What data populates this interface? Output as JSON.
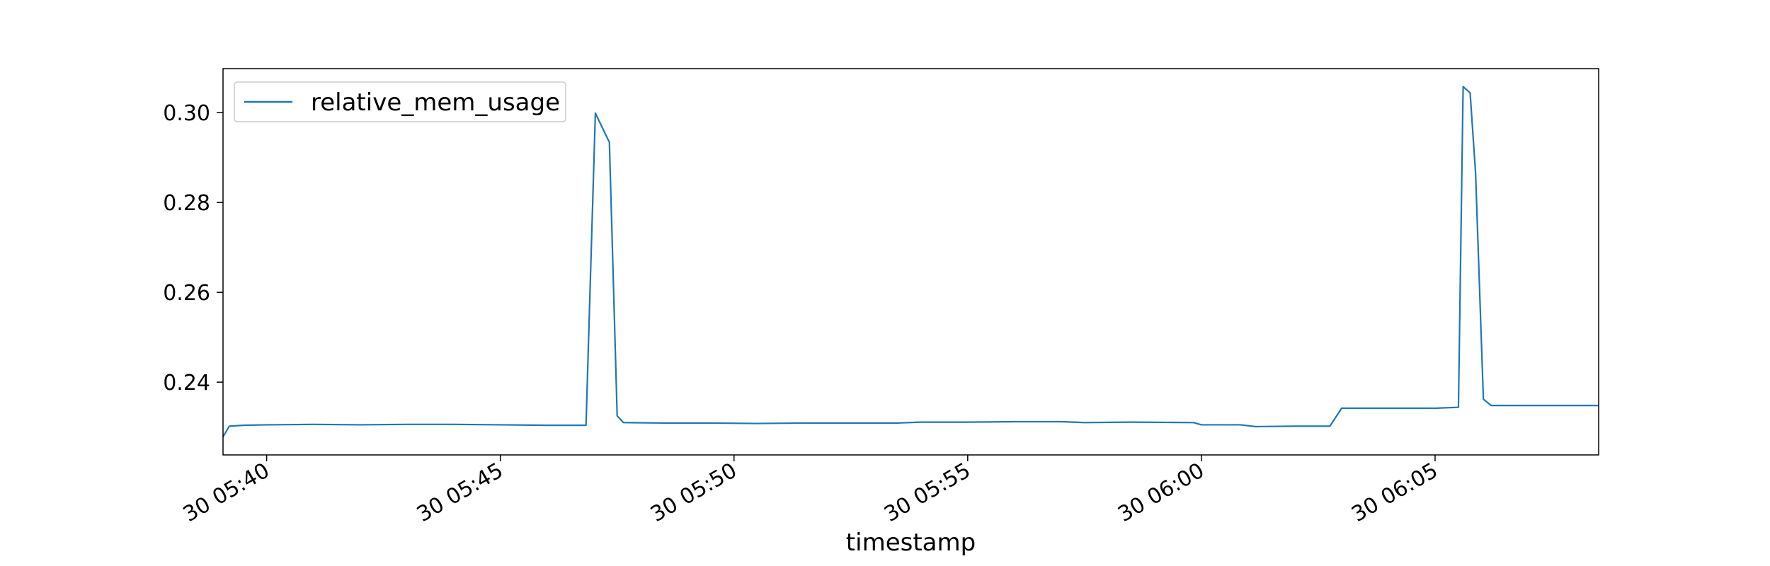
{
  "chart_data": {
    "type": "line",
    "title": "",
    "xlabel": "timestamp",
    "ylabel": "",
    "x_ticks": [
      {
        "time": "05:40",
        "label": "30 05:40"
      },
      {
        "time": "05:45",
        "label": "30 05:45"
      },
      {
        "time": "05:50",
        "label": "30 05:50"
      },
      {
        "time": "05:55",
        "label": "30 05:55"
      },
      {
        "time": "06:00",
        "label": "30 06:00"
      },
      {
        "time": "06:05",
        "label": "30 06:05"
      }
    ],
    "y_ticks": [
      {
        "value": 0.24,
        "label": "0.24"
      },
      {
        "value": 0.26,
        "label": "0.26"
      },
      {
        "value": 0.28,
        "label": "0.28"
      },
      {
        "value": 0.3,
        "label": "0.30"
      }
    ],
    "xlim": [
      "05:39:04",
      "06:08:30"
    ],
    "ylim": [
      0.2238,
      0.3098
    ],
    "grid": false,
    "legend": "top-left",
    "series": [
      {
        "name": "relative_mem_usage",
        "color": "#1f77b4",
        "points": [
          [
            "05:39:04",
            0.2278
          ],
          [
            "05:39:12",
            0.2302
          ],
          [
            "05:39:30",
            0.2304
          ],
          [
            "05:40:00",
            0.2305
          ],
          [
            "05:41:00",
            0.2306
          ],
          [
            "05:42:00",
            0.2305
          ],
          [
            "05:43:00",
            0.2306
          ],
          [
            "05:44:00",
            0.2306
          ],
          [
            "05:45:00",
            0.2305
          ],
          [
            "05:46:00",
            0.2304
          ],
          [
            "05:46:50",
            0.2304
          ],
          [
            "05:47:02",
            0.2999
          ],
          [
            "05:47:10",
            0.297
          ],
          [
            "05:47:20",
            0.2934
          ],
          [
            "05:47:30",
            0.2325
          ],
          [
            "05:47:38",
            0.231
          ],
          [
            "05:48:30",
            0.2309
          ],
          [
            "05:49:30",
            0.2309
          ],
          [
            "05:50:30",
            0.2308
          ],
          [
            "05:51:30",
            0.2309
          ],
          [
            "05:52:30",
            0.2309
          ],
          [
            "05:53:30",
            0.2309
          ],
          [
            "05:54:00",
            0.2311
          ],
          [
            "05:55:00",
            0.2311
          ],
          [
            "05:56:00",
            0.2312
          ],
          [
            "05:57:00",
            0.2312
          ],
          [
            "05:57:30",
            0.231
          ],
          [
            "05:58:30",
            0.2311
          ],
          [
            "05:59:50",
            0.231
          ],
          [
            "06:00:00",
            0.2305
          ],
          [
            "06:00:50",
            0.2305
          ],
          [
            "06:01:10",
            0.2301
          ],
          [
            "06:02:00",
            0.2302
          ],
          [
            "06:02:45",
            0.2302
          ],
          [
            "06:03:00",
            0.2342
          ],
          [
            "06:04:00",
            0.2342
          ],
          [
            "06:05:00",
            0.2342
          ],
          [
            "06:05:30",
            0.2344
          ],
          [
            "06:05:36",
            0.3058
          ],
          [
            "06:05:45",
            0.3044
          ],
          [
            "06:05:52",
            0.2865
          ],
          [
            "06:06:02",
            0.2362
          ],
          [
            "06:06:12",
            0.2348
          ],
          [
            "06:07:00",
            0.2348
          ],
          [
            "06:08:30",
            0.2348
          ]
        ]
      }
    ]
  }
}
